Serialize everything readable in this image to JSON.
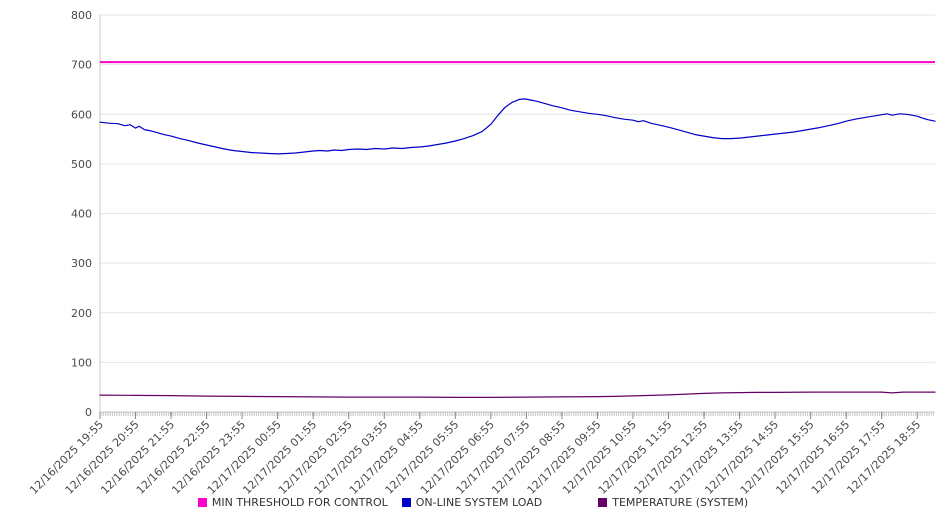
{
  "chart_data": {
    "type": "line",
    "title": "",
    "xlabel": "",
    "ylabel": "",
    "ylim": [
      0,
      800
    ],
    "y_ticks": [
      0,
      100,
      200,
      300,
      400,
      500,
      600,
      700,
      800
    ],
    "x_domain_hours": [
      0,
      23.5
    ],
    "grid": "horizontal",
    "legend_position": "bottom",
    "colors": {
      "background": "#ffffff",
      "grid": "#e6e6e6",
      "axis": "#c8c8c8",
      "minor_tick": "#b0b0b0",
      "hour_tick": "#888888",
      "tick_label": "#4a4a4a",
      "legend_text": "#333333"
    },
    "x_tick_labels": [
      "12/16/2025 19:55",
      "12/16/2025 20:55",
      "12/16/2025 21:55",
      "12/16/2025 22:55",
      "12/16/2025 23:55",
      "12/17/2025 00:55",
      "12/17/2025 01:55",
      "12/17/2025 02:55",
      "12/17/2025 03:55",
      "12/17/2025 04:55",
      "12/17/2025 05:55",
      "12/17/2025 06:55",
      "12/17/2025 07:55",
      "12/17/2025 08:55",
      "12/17/2025 09:55",
      "12/17/2025 10:55",
      "12/17/2025 11:55",
      "12/17/2025 12:55",
      "12/17/2025 13:55",
      "12/17/2025 14:55",
      "12/17/2025 15:55",
      "12/17/2025 16:55",
      "12/17/2025 17:55",
      "12/17/2025 18:55"
    ],
    "series": [
      {
        "name": "MIN THRESHOLD FOR CONTROL",
        "color": "#ff00cc",
        "type": "threshold",
        "value": 705
      },
      {
        "name": "ON-LINE SYSTEM LOAD",
        "color": "#0000c8",
        "type": "line",
        "points": [
          [
            0,
            584
          ],
          [
            0.25,
            582
          ],
          [
            0.5,
            581
          ],
          [
            0.7,
            577
          ],
          [
            0.85,
            579
          ],
          [
            1.0,
            572
          ],
          [
            1.1,
            576
          ],
          [
            1.25,
            569
          ],
          [
            1.4,
            567
          ],
          [
            1.6,
            563
          ],
          [
            1.8,
            559
          ],
          [
            2.0,
            556
          ],
          [
            2.25,
            551
          ],
          [
            2.5,
            547
          ],
          [
            2.75,
            542
          ],
          [
            3.0,
            538
          ],
          [
            3.25,
            534
          ],
          [
            3.5,
            530
          ],
          [
            3.75,
            527
          ],
          [
            4.0,
            525
          ],
          [
            4.25,
            523
          ],
          [
            4.5,
            522
          ],
          [
            4.75,
            521
          ],
          [
            5.0,
            520
          ],
          [
            5.25,
            521
          ],
          [
            5.5,
            522
          ],
          [
            5.75,
            524
          ],
          [
            6.0,
            526
          ],
          [
            6.2,
            527
          ],
          [
            6.4,
            526
          ],
          [
            6.6,
            528
          ],
          [
            6.8,
            527
          ],
          [
            7.0,
            529
          ],
          [
            7.25,
            530
          ],
          [
            7.5,
            529
          ],
          [
            7.75,
            531
          ],
          [
            8.0,
            530
          ],
          [
            8.25,
            532
          ],
          [
            8.5,
            531
          ],
          [
            8.75,
            533
          ],
          [
            9.0,
            534
          ],
          [
            9.25,
            536
          ],
          [
            9.5,
            539
          ],
          [
            9.75,
            542
          ],
          [
            10.0,
            546
          ],
          [
            10.25,
            551
          ],
          [
            10.5,
            557
          ],
          [
            10.75,
            565
          ],
          [
            11.0,
            580
          ],
          [
            11.2,
            598
          ],
          [
            11.4,
            614
          ],
          [
            11.6,
            624
          ],
          [
            11.8,
            630
          ],
          [
            11.95,
            631
          ],
          [
            12.1,
            629
          ],
          [
            12.3,
            626
          ],
          [
            12.5,
            622
          ],
          [
            12.75,
            617
          ],
          [
            13.0,
            613
          ],
          [
            13.25,
            608
          ],
          [
            13.5,
            605
          ],
          [
            13.75,
            602
          ],
          [
            14.0,
            600
          ],
          [
            14.25,
            597
          ],
          [
            14.5,
            593
          ],
          [
            14.75,
            590
          ],
          [
            15.0,
            588
          ],
          [
            15.15,
            585
          ],
          [
            15.3,
            587
          ],
          [
            15.5,
            582
          ],
          [
            15.75,
            578
          ],
          [
            16.0,
            574
          ],
          [
            16.25,
            569
          ],
          [
            16.5,
            564
          ],
          [
            16.75,
            559
          ],
          [
            17.0,
            556
          ],
          [
            17.25,
            553
          ],
          [
            17.5,
            551
          ],
          [
            17.75,
            551
          ],
          [
            18.0,
            552
          ],
          [
            18.25,
            554
          ],
          [
            18.5,
            556
          ],
          [
            18.75,
            558
          ],
          [
            19.0,
            560
          ],
          [
            19.25,
            562
          ],
          [
            19.5,
            564
          ],
          [
            19.75,
            567
          ],
          [
            20.0,
            570
          ],
          [
            20.25,
            573
          ],
          [
            20.5,
            577
          ],
          [
            20.75,
            581
          ],
          [
            21.0,
            586
          ],
          [
            21.25,
            590
          ],
          [
            21.5,
            593
          ],
          [
            21.75,
            596
          ],
          [
            22.0,
            599
          ],
          [
            22.15,
            601
          ],
          [
            22.3,
            598
          ],
          [
            22.5,
            601
          ],
          [
            22.7,
            600
          ],
          [
            22.85,
            598
          ],
          [
            23.0,
            596
          ],
          [
            23.15,
            592
          ],
          [
            23.3,
            589
          ],
          [
            23.5,
            586
          ]
        ]
      },
      {
        "name": "TEMPERATURE (SYSTEM)",
        "color": "#660066",
        "type": "line",
        "points": [
          [
            0,
            34
          ],
          [
            1,
            33.5
          ],
          [
            2,
            33
          ],
          [
            3,
            32
          ],
          [
            4,
            31.5
          ],
          [
            5,
            31
          ],
          [
            6,
            30.5
          ],
          [
            7,
            30
          ],
          [
            8,
            30
          ],
          [
            9,
            30
          ],
          [
            10,
            29.5
          ],
          [
            11,
            29.5
          ],
          [
            12,
            30
          ],
          [
            13,
            30.5
          ],
          [
            14,
            31
          ],
          [
            14.5,
            31.5
          ],
          [
            15,
            32.5
          ],
          [
            15.5,
            33.5
          ],
          [
            16,
            34.5
          ],
          [
            16.5,
            36
          ],
          [
            17,
            37.5
          ],
          [
            17.5,
            38.5
          ],
          [
            18,
            39
          ],
          [
            18.5,
            39.5
          ],
          [
            19,
            39.5
          ],
          [
            20,
            40
          ],
          [
            21,
            40
          ],
          [
            22,
            40
          ],
          [
            22.3,
            38.5
          ],
          [
            22.6,
            40
          ],
          [
            23,
            40
          ],
          [
            23.5,
            40
          ]
        ]
      }
    ]
  }
}
